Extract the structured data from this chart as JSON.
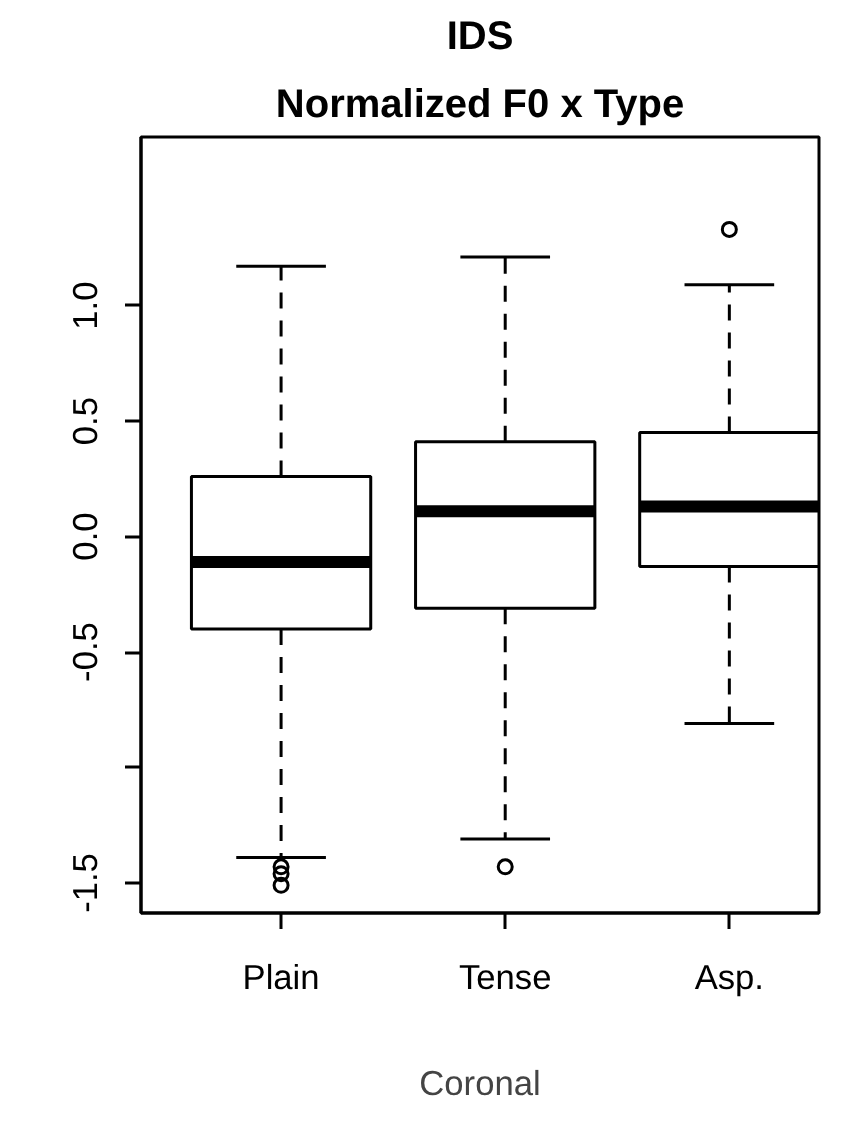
{
  "chart_data": {
    "type": "box",
    "title": "IDS",
    "subtitle": "Normalized F0 x Type",
    "xlabel": "Coronal",
    "categories": [
      "Plain",
      "Tense",
      "Asp."
    ],
    "boxes": [
      {
        "low": -1.39,
        "q1": -0.4,
        "median": -0.11,
        "q3": 0.26,
        "high": 1.17,
        "outliers": [
          -1.43,
          -1.46,
          -1.51
        ]
      },
      {
        "low": -1.31,
        "q1": -0.31,
        "median": 0.11,
        "q3": 0.41,
        "high": 1.21,
        "outliers": [
          -1.43
        ]
      },
      {
        "low": -0.81,
        "q1": -0.13,
        "median": 0.13,
        "q3": 0.45,
        "high": 1.09,
        "outliers": [
          1.33
        ]
      }
    ],
    "color": "#000000",
    "ylim": [
      -1.63,
      1.73
    ],
    "yticks": [
      {
        "value": -1.5,
        "label": "-1.5"
      },
      {
        "value": -1.0,
        "label": null
      },
      {
        "value": -0.5,
        "label": "-0.5"
      },
      {
        "value": 0.0,
        "label": "0.0"
      },
      {
        "value": 0.5,
        "label": "0.5"
      },
      {
        "value": 1.0,
        "label": "1.0"
      }
    ],
    "grid": false,
    "line_style": "dashed",
    "marker": "circle"
  }
}
